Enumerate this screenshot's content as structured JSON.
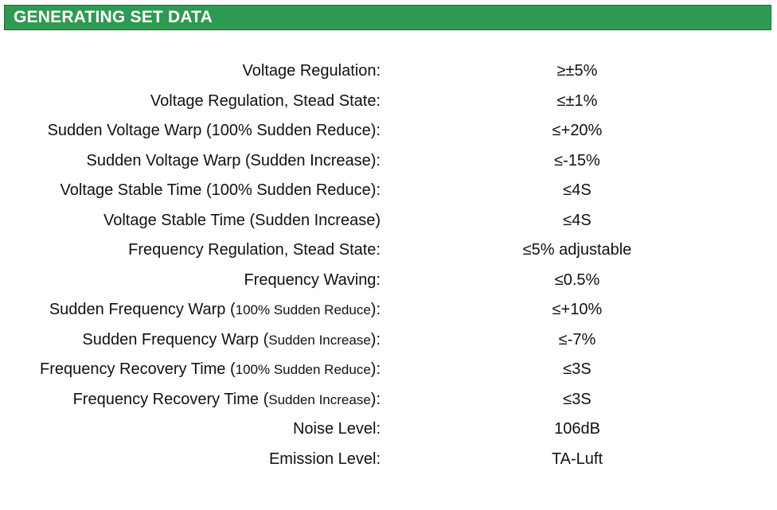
{
  "header": {
    "title": "GENERATING SET DATA",
    "background_color": "#2e9a52",
    "text_color": "#ffffff"
  },
  "rows": [
    {
      "label": "Voltage Regulation:",
      "label_small": "",
      "label_suffix": "",
      "value": "≥±5%"
    },
    {
      "label": "Voltage Regulation, Stead State:",
      "label_small": "",
      "label_suffix": "",
      "value": "≤±1%"
    },
    {
      "label": "Sudden Voltage Warp (100% Sudden Reduce):",
      "label_small": "",
      "label_suffix": "",
      "value": "≤+20%"
    },
    {
      "label": "Sudden Voltage Warp (Sudden Increase):",
      "label_small": "",
      "label_suffix": "",
      "value": "≤-15%"
    },
    {
      "label": "Voltage Stable Time (100% Sudden Reduce):",
      "label_small": "",
      "label_suffix": "",
      "value": "≤4S"
    },
    {
      "label": "Voltage Stable Time (Sudden Increase)",
      "label_small": "",
      "label_suffix": "",
      "value": "≤4S"
    },
    {
      "label": "Frequency Regulation, Stead State:",
      "label_small": "",
      "label_suffix": "",
      "value": "≤5% adjustable"
    },
    {
      "label": "Frequency Waving:",
      "label_small": "",
      "label_suffix": "",
      "value": "≤0.5%"
    },
    {
      "label": "Sudden Frequency Warp (",
      "label_small": "100% Sudden Reduce",
      "label_suffix": "):",
      "value": "≤+10%"
    },
    {
      "label": "Sudden Frequency Warp (",
      "label_small": "Sudden Increase",
      "label_suffix": "):",
      "value": "≤-7%"
    },
    {
      "label": "Frequency Recovery Time (",
      "label_small": "100% Sudden Reduce",
      "label_suffix": "):",
      "value": "≤3S"
    },
    {
      "label": "Frequency Recovery Time (",
      "label_small": "Sudden Increase",
      "label_suffix": "):",
      "value": "≤3S"
    },
    {
      "label": "Noise Level:",
      "label_small": "",
      "label_suffix": "",
      "value": "106dB"
    },
    {
      "label": "Emission Level:",
      "label_small": "",
      "label_suffix": "",
      "value": "TA-Luft"
    }
  ]
}
